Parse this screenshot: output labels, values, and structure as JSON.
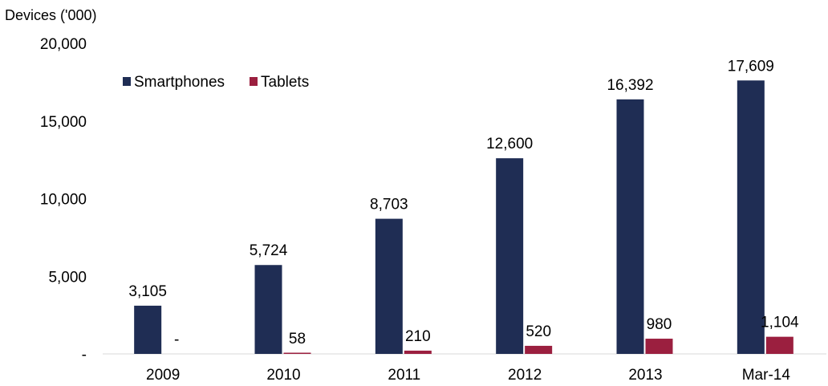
{
  "chart_data": {
    "type": "bar",
    "ylabel": "Devices ('000)",
    "xlabel": "",
    "categories": [
      "2009",
      "2010",
      "2011",
      "2012",
      "2013",
      "Mar-14"
    ],
    "ylim": [
      0,
      20000
    ],
    "yticks": [
      0,
      5000,
      10000,
      15000,
      20000
    ],
    "ytick_labels": [
      "-",
      "5,000",
      "10,000",
      "15,000",
      "20,000"
    ],
    "series": [
      {
        "name": "Smartphones",
        "color": "#1f2d54",
        "values": [
          3105,
          5724,
          8703,
          12600,
          16392,
          17609
        ],
        "labels": [
          "3,105",
          "5,724",
          "8,703",
          "12,600",
          "16,392",
          "17,609"
        ]
      },
      {
        "name": "Tablets",
        "color": "#9b1f3f",
        "values": [
          0,
          58,
          210,
          520,
          980,
          1104
        ],
        "labels": [
          "-",
          "58",
          "210",
          "520",
          "980",
          "1,104"
        ]
      }
    ],
    "legend": "top-left",
    "grid": false
  }
}
